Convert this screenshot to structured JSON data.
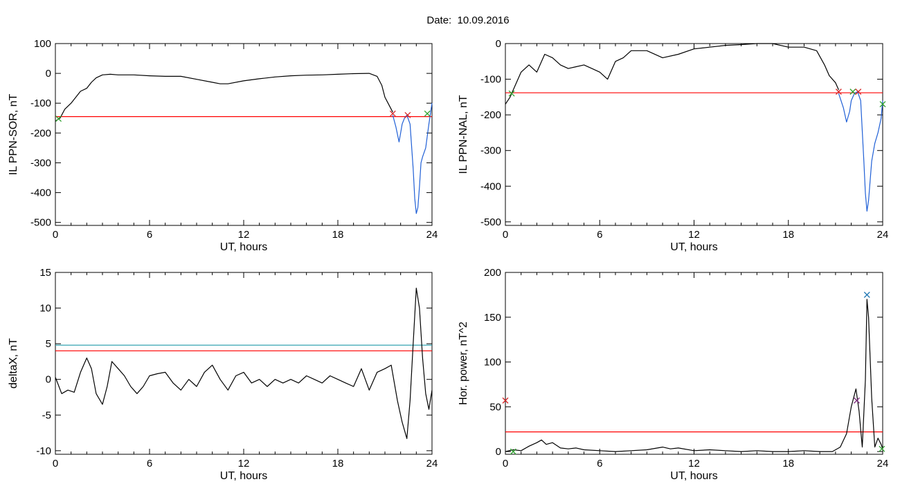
{
  "title": "Date:  10.09.2016",
  "colors": {
    "axis": "#000000",
    "trace": "#000000",
    "threshold_red": "#ff0000",
    "threshold_teal": "#1f9aa8",
    "event_blue": "#1f5fd6",
    "marker_green": "#2ca02c",
    "marker_red": "#d62728",
    "marker_purple": "#7a2a7a",
    "marker_blue": "#1f77b4"
  },
  "chart_data": [
    {
      "id": "sor",
      "type": "line",
      "xlabel": "UT, hours",
      "ylabel": "IL PPN-SOR, nT",
      "xlim": [
        0,
        24
      ],
      "ylim": [
        -510,
        100
      ],
      "xticks": [
        0,
        6,
        12,
        18,
        24
      ],
      "yticks": [
        100,
        0,
        -100,
        -200,
        -300,
        -400,
        -500
      ],
      "series": [
        {
          "color": "trace",
          "x": [
            0,
            0.3,
            0.6,
            1.0,
            1.3,
            1.6,
            2.0,
            2.3,
            2.6,
            3.0,
            3.5,
            4.0,
            5.0,
            6.0,
            7.0,
            8.0,
            9.0,
            10.0,
            10.5,
            11.0,
            12.0,
            13.0,
            14.0,
            15.0,
            16.0,
            17.0,
            18.0,
            19.0,
            20.0,
            20.5,
            20.8,
            21.0,
            21.2,
            21.5
          ],
          "y": [
            -160,
            -150,
            -120,
            -100,
            -80,
            -60,
            -50,
            -30,
            -15,
            -5,
            -3,
            -5,
            -5,
            -8,
            -10,
            -10,
            -20,
            -30,
            -35,
            -35,
            -25,
            -18,
            -12,
            -8,
            -6,
            -5,
            -3,
            -1,
            0,
            -10,
            -40,
            -80,
            -100,
            -130
          ]
        },
        {
          "color": "event_blue",
          "x": [
            21.5,
            21.7,
            21.9,
            22.0,
            22.1,
            22.25,
            22.4,
            22.6,
            22.8,
            22.9,
            23.0,
            23.1,
            23.2,
            23.3,
            23.4,
            23.6,
            23.8,
            24.0
          ],
          "y": [
            -140,
            -180,
            -230,
            -200,
            -170,
            -150,
            -140,
            -170,
            -320,
            -420,
            -470,
            -450,
            -380,
            -300,
            -280,
            -250,
            -170,
            -100
          ]
        }
      ],
      "hlines": [
        {
          "y": -145,
          "color": "threshold_red"
        }
      ],
      "markers": [
        {
          "x": 0.2,
          "y": -152,
          "color": "marker_green"
        },
        {
          "x": 21.5,
          "y": -135,
          "color": "marker_red"
        },
        {
          "x": 22.45,
          "y": -140,
          "color": "marker_red"
        },
        {
          "x": 23.7,
          "y": -135,
          "color": "marker_green"
        }
      ]
    },
    {
      "id": "nal",
      "type": "line",
      "xlabel": "UT, hours",
      "ylabel": "IL PPN-NAL, nT",
      "xlim": [
        0,
        24
      ],
      "ylim": [
        -510,
        0
      ],
      "xticks": [
        0,
        6,
        12,
        18,
        24
      ],
      "yticks": [
        0,
        -100,
        -200,
        -300,
        -400,
        -500
      ],
      "series": [
        {
          "color": "trace",
          "x": [
            0,
            0.3,
            0.6,
            1.0,
            1.5,
            2.0,
            2.5,
            3.0,
            3.5,
            4.0,
            4.5,
            5.0,
            5.5,
            6.0,
            6.5,
            7.0,
            7.5,
            8.0,
            9.0,
            10.0,
            11.0,
            12.0,
            13.0,
            14.0,
            15.0,
            16.0,
            17.0,
            18.0,
            19.0,
            19.8,
            20.3,
            20.6,
            21.0,
            21.2
          ],
          "y": [
            -170,
            -150,
            -120,
            -80,
            -60,
            -80,
            -30,
            -40,
            -60,
            -70,
            -65,
            -60,
            -70,
            -80,
            -100,
            -50,
            -40,
            -20,
            -20,
            -40,
            -30,
            -15,
            -10,
            -5,
            -3,
            0,
            0,
            -10,
            -10,
            -20,
            -60,
            -90,
            -110,
            -130
          ]
        },
        {
          "color": "event_blue",
          "x": [
            21.2,
            21.5,
            21.7,
            21.9,
            22.0,
            22.2,
            22.4,
            22.6,
            22.8,
            22.9,
            23.0,
            23.1,
            23.3,
            23.5,
            23.7,
            23.9,
            24.0
          ],
          "y": [
            -140,
            -180,
            -220,
            -190,
            -160,
            -140,
            -135,
            -160,
            -330,
            -420,
            -470,
            -440,
            -330,
            -280,
            -250,
            -210,
            -160
          ]
        }
      ],
      "hlines": [
        {
          "y": -138,
          "color": "threshold_red"
        }
      ],
      "markers": [
        {
          "x": 0.4,
          "y": -140,
          "color": "marker_green"
        },
        {
          "x": 21.2,
          "y": -135,
          "color": "marker_red"
        },
        {
          "x": 22.1,
          "y": -135,
          "color": "marker_green"
        },
        {
          "x": 22.45,
          "y": -135,
          "color": "marker_red"
        },
        {
          "x": 24.0,
          "y": -170,
          "color": "marker_green"
        }
      ]
    },
    {
      "id": "deltax",
      "type": "line",
      "xlabel": "UT, hours",
      "ylabel": "deltaX, nT",
      "xlim": [
        0,
        24
      ],
      "ylim": [
        -10.5,
        15
      ],
      "xticks": [
        0,
        6,
        12,
        18,
        24
      ],
      "yticks": [
        15,
        10,
        5,
        0,
        -5,
        -10
      ],
      "series": [
        {
          "color": "trace",
          "x": [
            0,
            0.4,
            0.8,
            1.2,
            1.6,
            2.0,
            2.3,
            2.6,
            3.0,
            3.3,
            3.6,
            4.0,
            4.4,
            4.8,
            5.2,
            5.6,
            6.0,
            6.5,
            7.0,
            7.5,
            8.0,
            8.5,
            9.0,
            9.5,
            10.0,
            10.5,
            11.0,
            11.5,
            12.0,
            12.5,
            13.0,
            13.5,
            14.0,
            14.5,
            15.0,
            15.5,
            16.0,
            16.5,
            17.0,
            17.5,
            18.0,
            18.5,
            19.0,
            19.5,
            20.0,
            20.5,
            21.0,
            21.4,
            21.8,
            22.1,
            22.4,
            22.6,
            22.8,
            23.0,
            23.2,
            23.4,
            23.6,
            23.8,
            24.0
          ],
          "y": [
            0.3,
            -2.0,
            -1.5,
            -1.8,
            1.0,
            3.0,
            1.5,
            -2.0,
            -3.5,
            -1.0,
            2.5,
            1.5,
            0.5,
            -1.0,
            -2.0,
            -1.0,
            0.5,
            0.8,
            1.0,
            -0.5,
            -1.5,
            0.0,
            -1.0,
            1.0,
            2.0,
            0.0,
            -1.5,
            0.5,
            1.0,
            -0.5,
            0.0,
            -1.0,
            0.0,
            -0.5,
            0.0,
            -0.5,
            0.5,
            0.0,
            -0.5,
            0.5,
            0.0,
            -0.5,
            -1.0,
            1.5,
            -1.5,
            1.0,
            1.5,
            2.0,
            -3.0,
            -6.0,
            -8.3,
            -3.0,
            5.0,
            12.8,
            10.0,
            3.0,
            -2.0,
            -4.2,
            -1.5
          ]
        }
      ],
      "hlines": [
        {
          "y": 4.8,
          "color": "threshold_teal"
        },
        {
          "y": 4.0,
          "color": "threshold_red"
        }
      ],
      "markers": []
    },
    {
      "id": "hpower",
      "type": "line",
      "xlabel": "UT, hours",
      "ylabel": "Hor. power, nT^2",
      "xlim": [
        0,
        24
      ],
      "ylim": [
        -3,
        200
      ],
      "xticks": [
        0,
        6,
        12,
        18,
        24
      ],
      "yticks": [
        200,
        150,
        100,
        50,
        0
      ],
      "series": [
        {
          "color": "trace",
          "x": [
            0,
            0.5,
            1.0,
            1.5,
            2.0,
            2.3,
            2.6,
            3.0,
            3.5,
            4.0,
            4.5,
            5.0,
            6.0,
            7.0,
            8.0,
            9.0,
            10.0,
            10.5,
            11.0,
            12.0,
            13.0,
            14.0,
            15.0,
            16.0,
            17.0,
            18.0,
            19.0,
            20.0,
            20.8,
            21.3,
            21.7,
            22.0,
            22.3,
            22.5,
            22.7,
            22.9,
            23.0,
            23.1,
            23.3,
            23.5,
            23.7,
            23.9,
            24.0
          ],
          "y": [
            0,
            2,
            1,
            6,
            10,
            13,
            8,
            10,
            4,
            3,
            4,
            2,
            1,
            0,
            1,
            2,
            5,
            3,
            4,
            1,
            2,
            1,
            0,
            1,
            0,
            0,
            1,
            0,
            0,
            5,
            20,
            50,
            70,
            45,
            5,
            80,
            170,
            150,
            60,
            5,
            15,
            8,
            3
          ]
        }
      ],
      "hlines": [
        {
          "y": 22,
          "color": "threshold_red"
        }
      ],
      "markers": [
        {
          "x": 0.0,
          "y": 57,
          "color": "marker_red"
        },
        {
          "x": 0.5,
          "y": 0,
          "color": "marker_green"
        },
        {
          "x": 22.35,
          "y": 57,
          "color": "marker_purple"
        },
        {
          "x": 23.0,
          "y": 175,
          "color": "marker_blue"
        },
        {
          "x": 23.95,
          "y": 3,
          "color": "marker_green"
        }
      ]
    }
  ]
}
